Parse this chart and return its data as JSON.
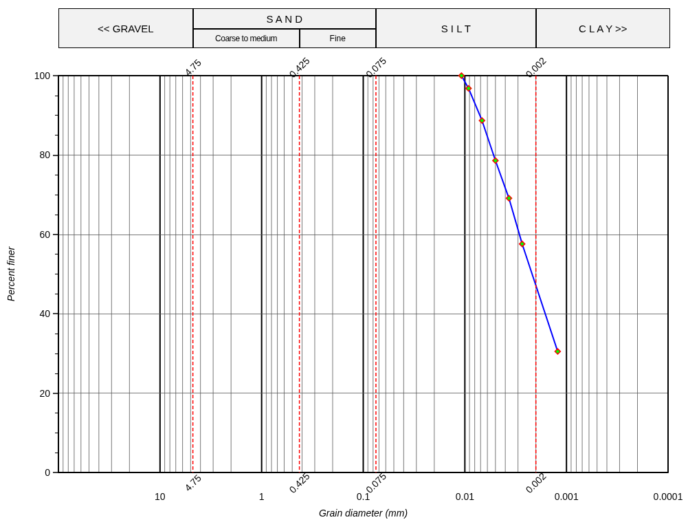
{
  "chart_data": {
    "type": "line",
    "xlabel": "Grain diameter (mm)",
    "ylabel": "Percent finer",
    "x": [
      0.0108,
      0.0092,
      0.00678,
      0.005,
      0.00368,
      0.00273,
      0.00122
    ],
    "series": [
      {
        "color": "#0000ff",
        "colors": [
          "#00ff00",
          "#00ff00",
          "#00ff00",
          "#00ff00",
          "#00ff00",
          "#00ff00",
          "#00ff00"
        ],
        "values": [
          100,
          96.8,
          88.7,
          78.6,
          69.1,
          57.6,
          30.5
        ]
      }
    ],
    "marker": "diamond",
    "line_style": "solid",
    "log": "x",
    "xlim": [
      100,
      0.0001
    ],
    "xticks": [
      10,
      1,
      0.1,
      0.01,
      0.001,
      0.0001
    ],
    "ylim": [
      0,
      100
    ],
    "yticks": [
      0,
      20,
      40,
      60,
      80,
      100
    ],
    "grid": true,
    "ref_lines": [
      {
        "axis": "x",
        "value": 4.75,
        "label": "4.75",
        "color": "#ff0000",
        "line_style": "dashed"
      },
      {
        "axis": "x",
        "value": 0.425,
        "label": "0.425",
        "color": "#ff0000",
        "line_style": "dashed"
      },
      {
        "axis": "x",
        "value": 0.075,
        "label": "0.075",
        "color": "#ff0000",
        "line_style": "dashed"
      },
      {
        "axis": "x",
        "value": 0.002,
        "label": "0.002",
        "color": "#ff0000",
        "line_style": "dashed"
      }
    ],
    "annotations": [
      "<< GRAVEL",
      "S A N D",
      "Coarse to medium",
      "Fine",
      "S I L T",
      "C L A Y >>"
    ]
  }
}
